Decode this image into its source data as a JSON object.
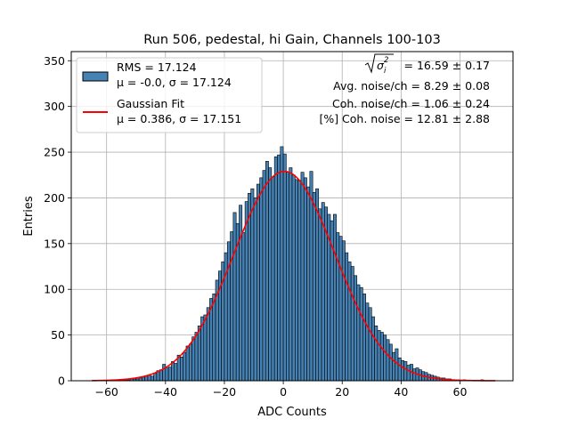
{
  "chart_data": {
    "type": "histogram",
    "title": "Run 506, pedestal, hi Gain, Channels 100-103",
    "xlabel": "ADC Counts",
    "ylabel": "Entries",
    "xlim": [
      -72,
      78
    ],
    "ylim": [
      0,
      360
    ],
    "xticks": [
      -60,
      -40,
      -20,
      0,
      20,
      40,
      60
    ],
    "yticks": [
      0,
      50,
      100,
      150,
      200,
      250,
      300,
      350
    ],
    "grid": true,
    "bin_width": 1,
    "bin_range": [
      -65,
      72
    ],
    "bar_color": "#4682b4",
    "fit_color": "#ff0000",
    "legend_position": "top-left",
    "legend": [
      {
        "kind": "histogram",
        "line1": "RMS = 17.124",
        "line2": "μ = -0.0, σ = 17.124"
      },
      {
        "kind": "line",
        "line1": "Gaussian Fit",
        "line2": "μ = 0.386, σ = 17.151"
      }
    ],
    "annotations": {
      "sigma_line": "= 16.59 ± 0.17",
      "avg_noise": "Avg. noise/ch = 8.29 ± 0.08",
      "coh_noise": "Coh. noise/ch = 1.06 ± 0.24",
      "pct_coh_noise": "[%] Coh. noise = 12.81 ± 2.88"
    },
    "fit": {
      "mu": 0.386,
      "sigma": 17.151,
      "amplitude": 229
    },
    "series": [
      {
        "name": "counts",
        "bin_lefts": [
          -65,
          -64,
          -63,
          -62,
          -61,
          -60,
          -59,
          -58,
          -57,
          -56,
          -55,
          -54,
          -53,
          -52,
          -51,
          -50,
          -49,
          -48,
          -47,
          -46,
          -45,
          -44,
          -43,
          -42,
          -41,
          -40,
          -39,
          -38,
          -37,
          -36,
          -35,
          -34,
          -33,
          -32,
          -31,
          -30,
          -29,
          -28,
          -27,
          -26,
          -25,
          -24,
          -23,
          -22,
          -21,
          -20,
          -19,
          -18,
          -17,
          -16,
          -15,
          -14,
          -13,
          -12,
          -11,
          -10,
          -9,
          -8,
          -7,
          -6,
          -5,
          -4,
          -3,
          -2,
          -1,
          0,
          1,
          2,
          3,
          4,
          5,
          6,
          7,
          8,
          9,
          10,
          11,
          12,
          13,
          14,
          15,
          16,
          17,
          18,
          19,
          20,
          21,
          22,
          23,
          24,
          25,
          26,
          27,
          28,
          29,
          30,
          31,
          32,
          33,
          34,
          35,
          36,
          37,
          38,
          39,
          40,
          41,
          42,
          43,
          44,
          45,
          46,
          47,
          48,
          49,
          50,
          51,
          52,
          53,
          54,
          55,
          56,
          57,
          58,
          59,
          60,
          61,
          62,
          63,
          64,
          65,
          66,
          67,
          68,
          69,
          70,
          71
        ],
        "values": [
          0,
          0,
          0,
          0,
          0,
          0,
          0,
          1,
          0,
          0,
          1,
          1,
          1,
          2,
          2,
          2,
          3,
          4,
          5,
          6,
          5,
          8,
          11,
          12,
          18,
          14,
          15,
          21,
          19,
          28,
          26,
          31,
          38,
          40,
          48,
          53,
          60,
          70,
          72,
          80,
          90,
          95,
          110,
          120,
          130,
          140,
          152,
          163,
          184,
          172,
          192,
          162,
          196,
          205,
          210,
          200,
          215,
          222,
          230,
          240,
          233,
          223,
          245,
          247,
          256,
          248,
          228,
          233,
          225,
          220,
          219,
          228,
          222,
          212,
          229,
          206,
          210,
          188,
          195,
          190,
          182,
          175,
          182,
          162,
          158,
          153,
          140,
          130,
          125,
          115,
          105,
          102,
          95,
          85,
          80,
          70,
          60,
          55,
          53,
          50,
          45,
          40,
          31,
          35,
          25,
          22,
          21,
          17,
          18,
          13,
          14,
          12,
          10,
          9,
          7,
          6,
          5,
          4,
          3,
          3,
          2,
          2,
          1,
          1,
          1,
          0,
          1,
          0,
          0,
          0,
          0,
          0,
          1,
          0,
          0,
          0,
          0
        ]
      }
    ]
  }
}
